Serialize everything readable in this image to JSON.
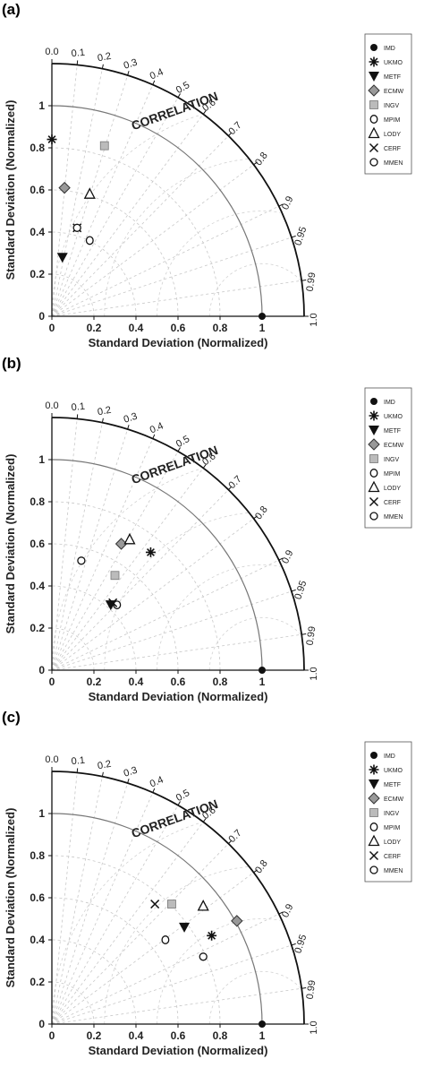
{
  "axes": {
    "xlabel": "Standard Deviation (Normalized)",
    "ylabel": "Standard Deviation (Normalized)",
    "corr_title": "CORRELATION",
    "std_ticks": [
      "0",
      "0.2",
      "0.4",
      "0.6",
      "0.8",
      "1"
    ],
    "corr_ticks": [
      "0.0",
      "0.1",
      "0.2",
      "0.3",
      "0.4",
      "0.5",
      "0.6",
      "0.7",
      "0.8",
      "0.9",
      "0.95",
      "0.99",
      "1.0"
    ]
  },
  "legend": [
    "IMD",
    "UKMO",
    "METF",
    "ECMW",
    "INGV",
    "MPIM",
    "LODY",
    "CERF",
    "MMEN"
  ],
  "chart_data": [
    {
      "type": "scatter",
      "panel": "(a)",
      "subtype": "taylor-diagram",
      "xlim": [
        0,
        1.2
      ],
      "ylim": [
        0,
        1.2
      ],
      "points": [
        {
          "model": "IMD",
          "std_x": 1.0,
          "std_y": 0.0
        },
        {
          "model": "UKMO",
          "std_x": 0.0,
          "std_y": 0.84
        },
        {
          "model": "METF",
          "std_x": 0.05,
          "std_y": 0.28
        },
        {
          "model": "ECMW",
          "std_x": 0.06,
          "std_y": 0.61
        },
        {
          "model": "INGV",
          "std_x": 0.25,
          "std_y": 0.81
        },
        {
          "model": "MPIM",
          "std_x": 0.18,
          "std_y": 0.36
        },
        {
          "model": "LODY",
          "std_x": 0.18,
          "std_y": 0.58
        },
        {
          "model": "CERF",
          "std_x": 0.12,
          "std_y": 0.42
        },
        {
          "model": "MMEN",
          "std_x": 0.12,
          "std_y": 0.42
        }
      ]
    },
    {
      "type": "scatter",
      "panel": "(b)",
      "subtype": "taylor-diagram",
      "xlim": [
        0,
        1.2
      ],
      "ylim": [
        0,
        1.2
      ],
      "points": [
        {
          "model": "IMD",
          "std_x": 1.0,
          "std_y": 0.0
        },
        {
          "model": "UKMO",
          "std_x": 0.47,
          "std_y": 0.56
        },
        {
          "model": "METF",
          "std_x": 0.28,
          "std_y": 0.31
        },
        {
          "model": "ECMW",
          "std_x": 0.33,
          "std_y": 0.6
        },
        {
          "model": "INGV",
          "std_x": 0.3,
          "std_y": 0.45
        },
        {
          "model": "MPIM",
          "std_x": 0.31,
          "std_y": 0.31
        },
        {
          "model": "LODY",
          "std_x": 0.37,
          "std_y": 0.62
        },
        {
          "model": "CERF",
          "std_x": 0.29,
          "std_y": 0.32
        },
        {
          "model": "MMEN",
          "std_x": 0.14,
          "std_y": 0.52
        }
      ]
    },
    {
      "type": "scatter",
      "panel": "(c)",
      "subtype": "taylor-diagram",
      "xlim": [
        0,
        1.2
      ],
      "ylim": [
        0,
        1.2
      ],
      "points": [
        {
          "model": "IMD",
          "std_x": 1.0,
          "std_y": 0.0
        },
        {
          "model": "UKMO",
          "std_x": 0.76,
          "std_y": 0.42
        },
        {
          "model": "METF",
          "std_x": 0.63,
          "std_y": 0.46
        },
        {
          "model": "ECMW",
          "std_x": 0.88,
          "std_y": 0.49
        },
        {
          "model": "INGV",
          "std_x": 0.57,
          "std_y": 0.57
        },
        {
          "model": "MPIM",
          "std_x": 0.54,
          "std_y": 0.4
        },
        {
          "model": "LODY",
          "std_x": 0.72,
          "std_y": 0.56
        },
        {
          "model": "CERF",
          "std_x": 0.49,
          "std_y": 0.57
        },
        {
          "model": "MMEN",
          "std_x": 0.72,
          "std_y": 0.32
        }
      ]
    }
  ]
}
